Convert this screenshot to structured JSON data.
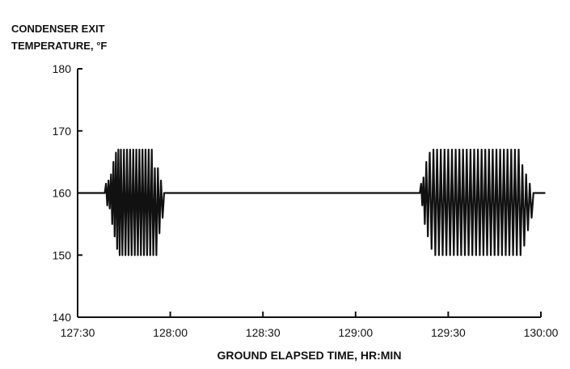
{
  "chart_data": {
    "type": "line",
    "ylabel_lines": [
      "CONDENSER EXIT",
      "TEMPERATURE, °F"
    ],
    "xlabel": "GROUND ELAPSED TIME, HR:MIN",
    "x_ticks": [
      "127:30",
      "128:00",
      "128:30",
      "129:00",
      "129:30",
      "130:00"
    ],
    "x_tick_minutes": [
      0,
      30,
      60,
      90,
      120,
      150
    ],
    "y_ticks": [
      140,
      150,
      160,
      170,
      180
    ],
    "ylim": [
      140,
      180
    ],
    "xlim": [
      "127:30",
      "130:00"
    ],
    "grid": false,
    "series": [
      {
        "x_minutes": [
          0,
          8.8,
          9.2,
          9.6,
          10.0,
          10.4,
          10.8,
          11.2,
          11.6,
          12.0,
          12.4,
          12.8,
          13.2,
          13.6,
          14.0,
          14.5,
          15.0,
          15.5,
          16.0,
          16.5,
          17.0,
          17.5,
          18.0,
          18.5,
          19.0,
          19.5,
          20.0,
          20.5,
          21.0,
          21.5,
          22.0,
          22.5,
          23.0,
          23.5,
          24.0,
          24.5,
          25.0,
          25.5,
          26.0,
          26.5,
          27.0,
          27.5,
          28.0,
          28.5,
          29.0,
          29.5,
          30.0,
          30.5,
          31.0,
          110,
          110.8,
          111.2,
          111.6,
          112.0,
          112.4,
          112.9,
          113.4,
          114.0,
          114.6,
          115.2,
          115.8,
          116.4,
          117.0,
          117.6,
          118.2,
          118.8,
          119.4,
          120.0,
          120.6,
          121.2,
          121.8,
          122.4,
          123.0,
          123.6,
          124.2,
          124.8,
          125.4,
          126.0,
          126.6,
          127.2,
          127.8,
          128.4,
          129.0,
          129.6,
          130.2,
          130.8,
          131.4,
          132.0,
          132.6,
          133.2,
          133.8,
          134.4,
          135.0,
          135.6,
          136.2,
          136.8,
          137.4,
          138.0,
          138.6,
          139.2,
          139.8,
          140.4,
          141.0,
          141.6,
          142.2,
          142.8,
          143.4,
          144.0,
          144.6,
          145.2,
          145.8,
          146.4,
          147.0,
          147.6,
          148.2,
          148.8,
          149.4,
          150.0,
          150.6,
          151.2
        ],
        "values": [
          160,
          160,
          161.5,
          158,
          162,
          157.5,
          163,
          155,
          165,
          153,
          166.5,
          151,
          167,
          150,
          167,
          150,
          167,
          150,
          167,
          150,
          167,
          150,
          167,
          150,
          167,
          150,
          167,
          150,
          167,
          150,
          167,
          150,
          167,
          150,
          167,
          150,
          164,
          150,
          164,
          153.5,
          162,
          156,
          160,
          160,
          160,
          160,
          160,
          160,
          160,
          160,
          160,
          161.5,
          158,
          162.5,
          155,
          165,
          153,
          166.5,
          151,
          167,
          150,
          167,
          150,
          167,
          150,
          167,
          150,
          167,
          150,
          167,
          150,
          167,
          150,
          167,
          150,
          167,
          150,
          167,
          150,
          167,
          150,
          167,
          150,
          167,
          150,
          167,
          150,
          167,
          150,
          167,
          150,
          167,
          150,
          167,
          150,
          167,
          150,
          167,
          150,
          167,
          150,
          167,
          150,
          167,
          150,
          167,
          150,
          164.5,
          151.5,
          163,
          154,
          161.5,
          156,
          160,
          160,
          160,
          160,
          160,
          160,
          160
        ]
      }
    ]
  }
}
